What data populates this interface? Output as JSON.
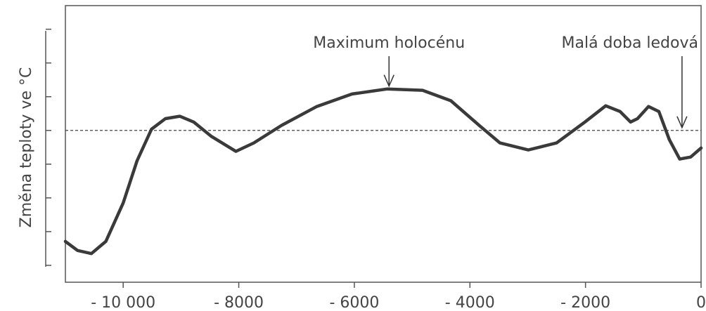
{
  "chart_data": {
    "type": "line",
    "ylabel": "Změna teploty ve °C",
    "x": [
      -11000,
      -10790,
      -10550,
      -10300,
      -10000,
      -9760,
      -9510,
      -9270,
      -9020,
      -8780,
      -8480,
      -8050,
      -7740,
      -7260,
      -6650,
      -6040,
      -5430,
      -4820,
      -4330,
      -3840,
      -3480,
      -2990,
      -2500,
      -2010,
      -1650,
      -1400,
      -1220,
      -1100,
      -910,
      -730,
      -550,
      -370,
      -180,
      0
    ],
    "values": [
      -3.29,
      -3.56,
      -3.65,
      -3.29,
      -2.15,
      -0.9,
      0.04,
      0.35,
      0.42,
      0.25,
      -0.17,
      -0.62,
      -0.37,
      0.15,
      0.71,
      1.08,
      1.23,
      1.19,
      0.88,
      0.15,
      -0.37,
      -0.58,
      -0.37,
      0.25,
      0.73,
      0.56,
      0.25,
      0.35,
      0.71,
      0.56,
      -0.27,
      -0.85,
      -0.79,
      -0.52
    ],
    "color": "#3a3a3a",
    "xlim": [
      -11000,
      0
    ],
    "xticks": [
      {
        "value": -10000,
        "label": "- 10 000"
      },
      {
        "value": -8000,
        "label": "- 8000"
      },
      {
        "value": -6000,
        "label": "- 6000"
      },
      {
        "value": -4000,
        "label": "- 4000"
      },
      {
        "value": -2000,
        "label": "- 2000"
      },
      0
    ],
    "ylim": [
      -4.5,
      3.7
    ],
    "yticks": [
      -4,
      -3,
      -2,
      -1,
      0,
      1,
      2,
      3
    ],
    "reference_line": 0,
    "annotations": [
      {
        "text": "Maximum holocénu",
        "x": -5400,
        "y": 1.23
      },
      {
        "text": "Malá doba ledová",
        "x": -330,
        "y": 0
      }
    ]
  }
}
